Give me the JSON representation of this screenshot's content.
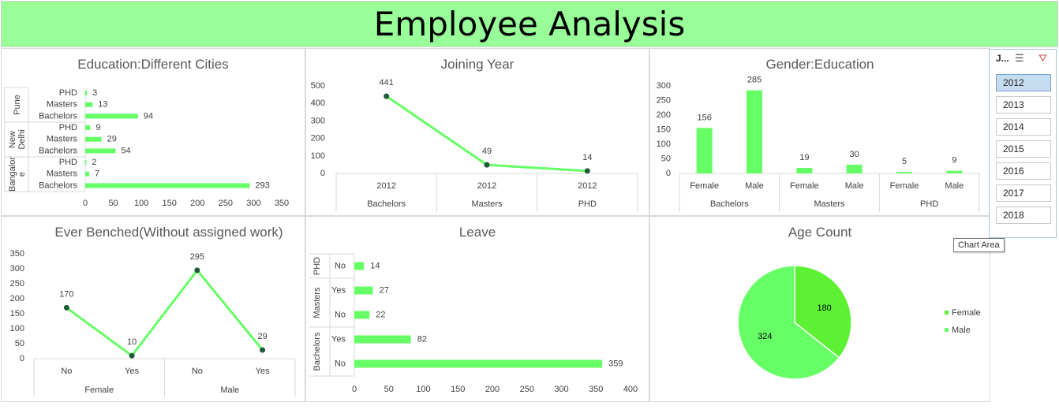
{
  "header": {
    "title": "Employee Analysis"
  },
  "colors": {
    "bar": "#66ff66",
    "line": "#66ff66",
    "marker": "#1f5a3a",
    "female": "#5cf233",
    "male": "#66ff66"
  },
  "charts": {
    "education_cities": {
      "title": "Education:Different Cities",
      "chart_data": {
        "type": "bar",
        "orientation": "horizontal",
        "groups": [
          {
            "name": "Pune",
            "categories": [
              "PHD",
              "Masters",
              "Bachelors"
            ],
            "values": [
              3,
              13,
              94
            ]
          },
          {
            "name": "New Delhi",
            "categories": [
              "PHD",
              "Masters",
              "Bachelors"
            ],
            "values": [
              9,
              29,
              54
            ]
          },
          {
            "name": "Bangalore",
            "categories": [
              "PHD",
              "Masters",
              "Bachelors"
            ],
            "values": [
              2,
              7,
              293
            ]
          }
        ],
        "group_labels_display": [
          [
            "Pune"
          ],
          [
            "New",
            "Delhi"
          ],
          [
            "Bangalor",
            "e"
          ]
        ],
        "xlim": [
          0,
          350
        ],
        "xticks": [
          "0",
          "50",
          "100",
          "150",
          "200",
          "250",
          "300",
          "350"
        ]
      }
    },
    "joining_year": {
      "title": "Joining Year",
      "chart_data": {
        "type": "line",
        "categories": [
          [
            "2012",
            "Bachelors"
          ],
          [
            "2012",
            "Masters"
          ],
          [
            "2012",
            "PHD"
          ]
        ],
        "values": [
          441,
          49,
          14
        ],
        "ylim": [
          0,
          500
        ],
        "yticks": [
          "0",
          "100",
          "200",
          "300",
          "400",
          "500"
        ]
      }
    },
    "gender_education": {
      "title": "Gender:Education",
      "chart_data": {
        "type": "bar",
        "groups": [
          {
            "name": "Bachelors",
            "categories": [
              "Female",
              "Male"
            ],
            "values": [
              156,
              285
            ]
          },
          {
            "name": "Masters",
            "categories": [
              "Female",
              "Male"
            ],
            "values": [
              19,
              30
            ]
          },
          {
            "name": "PHD",
            "categories": [
              "Female",
              "Male"
            ],
            "values": [
              5,
              9
            ]
          }
        ],
        "ylim": [
          0,
          300
        ],
        "yticks": [
          "0",
          "50",
          "100",
          "150",
          "200",
          "250",
          "300"
        ]
      }
    },
    "ever_benched": {
      "title": "Ever Benched(Without assigned work)",
      "chart_data": {
        "type": "line",
        "groups": [
          {
            "name": "Female",
            "categories": [
              "No",
              "Yes"
            ],
            "values": [
              170,
              10
            ]
          },
          {
            "name": "Male",
            "categories": [
              "No",
              "Yes"
            ],
            "values": [
              295,
              29
            ]
          }
        ],
        "ylim": [
          0,
          350
        ],
        "yticks": [
          "0",
          "50",
          "100",
          "150",
          "200",
          "250",
          "300",
          "350"
        ]
      }
    },
    "leave": {
      "title": "Leave",
      "chart_data": {
        "type": "bar",
        "orientation": "horizontal",
        "groups": [
          {
            "name": "PHD",
            "categories": [
              "No"
            ],
            "values": [
              14
            ]
          },
          {
            "name": "Masters",
            "categories": [
              "Yes",
              "No"
            ],
            "values": [
              27,
              22
            ]
          },
          {
            "name": "Bachelors",
            "categories": [
              "Yes",
              "No"
            ],
            "values": [
              82,
              359
            ]
          }
        ],
        "xlim": [
          0,
          400
        ],
        "xticks": [
          "0",
          "50",
          "100",
          "150",
          "200",
          "250",
          "300",
          "350",
          "400"
        ]
      }
    },
    "age_count": {
      "title": "Age Count",
      "chart_data": {
        "type": "pie",
        "categories": [
          "Female",
          "Male"
        ],
        "values": [
          180,
          324
        ],
        "legend_position": "right"
      }
    }
  },
  "slicer": {
    "header": "J...",
    "items": [
      "2012",
      "2013",
      "2014",
      "2015",
      "2016",
      "2017",
      "2018"
    ],
    "selected": "2012"
  },
  "tooltip": "Chart Area"
}
